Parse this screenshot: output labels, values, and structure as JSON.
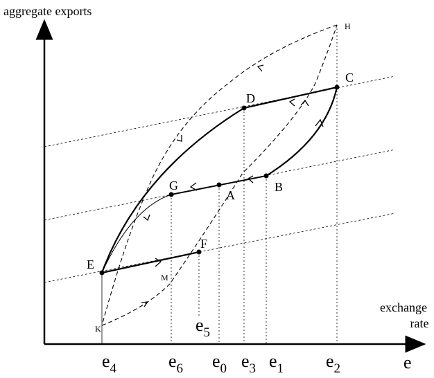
{
  "y_axis_label": "aggregate exports",
  "x_axis_label": [
    "exchange",
    "rate"
  ],
  "x_axis_symbol": "e",
  "nodes": [
    {
      "label": "A"
    },
    {
      "label": "B"
    },
    {
      "label": "C"
    },
    {
      "label": "D"
    },
    {
      "label": "E"
    },
    {
      "label": "F"
    },
    {
      "label": "G"
    },
    {
      "label": "H"
    },
    {
      "label": "K"
    },
    {
      "label": "M"
    }
  ],
  "rate_labels": [
    {
      "letter": "e",
      "sub": "4"
    },
    {
      "letter": "e",
      "sub": "6"
    },
    {
      "letter": "e",
      "sub": "0"
    },
    {
      "letter": "e",
      "sub": "3"
    },
    {
      "letter": "e",
      "sub": "1"
    },
    {
      "letter": "e",
      "sub": "2"
    },
    {
      "letter": "e",
      "sub": "5"
    }
  ]
}
